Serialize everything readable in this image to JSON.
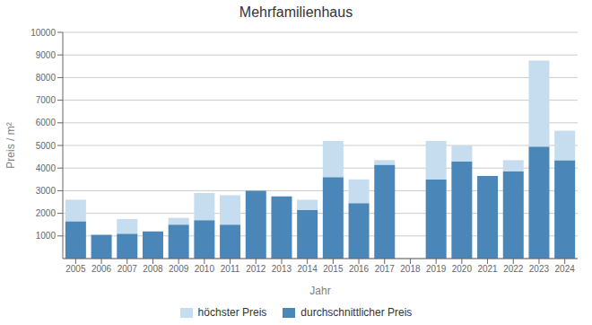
{
  "chart_data": {
    "type": "bar",
    "title": "Mehrfamilienhaus",
    "x_label": "Jahr",
    "y_label": "Preis / m²",
    "categories": [
      "2005",
      "2006",
      "2007",
      "2008",
      "2009",
      "2010",
      "2011",
      "2012",
      "2013",
      "2014",
      "2015",
      "2016",
      "2017",
      "2018",
      "2019",
      "2020",
      "2021",
      "2022",
      "2023",
      "2024"
    ],
    "series": [
      {
        "name": "durchschnittlicher Preis",
        "color": "#4a86b8",
        "values": [
          1650,
          1050,
          1100,
          1200,
          1500,
          1700,
          1500,
          3000,
          2750,
          2150,
          3600,
          2450,
          4150,
          0,
          3500,
          4300,
          3650,
          3850,
          4950,
          4350
        ]
      },
      {
        "name": "höchster Preis",
        "color": "#c5ddef",
        "values": [
          950,
          0,
          650,
          0,
          300,
          1200,
          1300,
          0,
          0,
          450,
          1600,
          1050,
          200,
          0,
          1700,
          700,
          0,
          500,
          3800,
          1300
        ]
      }
    ],
    "stacked": true,
    "ylim": [
      0,
      10000
    ],
    "yticks": [
      1000,
      2000,
      3000,
      4000,
      5000,
      6000,
      7000,
      8000,
      9000,
      10000
    ],
    "grid": true
  }
}
